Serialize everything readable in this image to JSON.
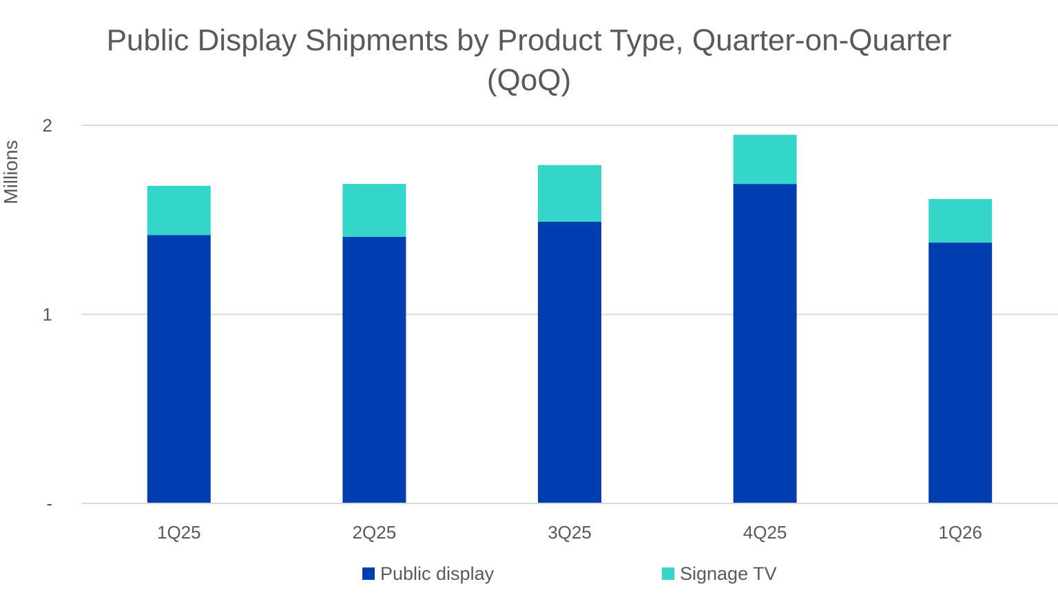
{
  "chart_data": {
    "type": "bar",
    "stacked": true,
    "title_lines": [
      "Public Display Shipments by Product Type, Quarter-on-Quarter",
      "(QoQ)"
    ],
    "ylabel": "Millions",
    "xlabel": "",
    "categories": [
      "1Q25",
      "2Q25",
      "3Q25",
      "4Q25",
      "1Q26"
    ],
    "series": [
      {
        "name": "Public display",
        "color": "#003DB0",
        "values": [
          1.42,
          1.41,
          1.49,
          1.69,
          1.38
        ]
      },
      {
        "name": "Signage TV",
        "color": "#33D6C8",
        "values": [
          0.26,
          0.28,
          0.3,
          0.26,
          0.23
        ]
      }
    ],
    "ylim": [
      0,
      2
    ],
    "y_ticks": [
      {
        "value": 0,
        "label": "-"
      },
      {
        "value": 1,
        "label": "1"
      },
      {
        "value": 2,
        "label": "2"
      }
    ],
    "grid": true,
    "legend_position": "bottom",
    "axis_text_color": "#595959",
    "grid_color": "#D9D9D9"
  }
}
